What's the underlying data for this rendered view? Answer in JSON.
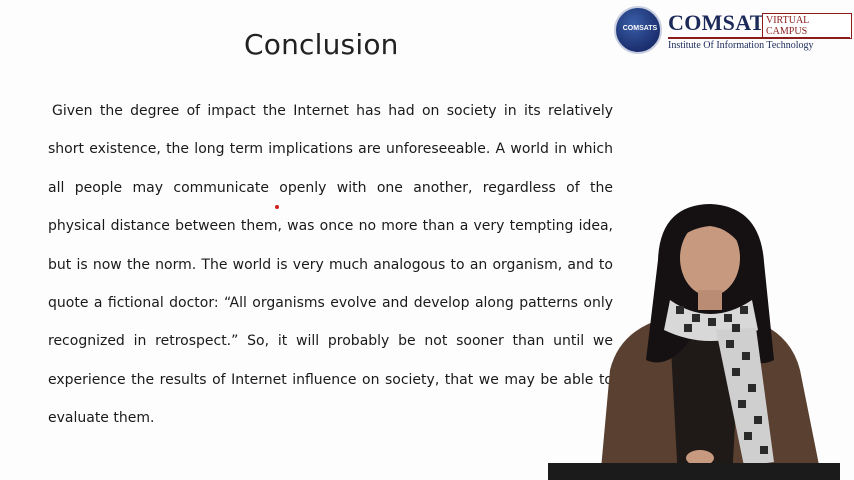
{
  "slide": {
    "title": "Conclusion",
    "paragraph": "Given the degree of impact the Internet has had on society in its relatively short existence, the long term implications are unforeseeable. A world in which all people may communicate openly with one another, regardless of the physical distance between them, was once no more than a very tempting idea, but is now the norm. The world is very much analogous to an organism, and to quote a fictional doctor: “All organisms evolve and develop along patterns only recognized in retrospect.” So, it will probably be not sooner than until we experience the results of Internet influence on society, that we may be able to evaluate them."
  },
  "logo": {
    "badge_text": "COMSATS",
    "name": "COMSATS",
    "tag": "VIRTUAL CAMPUS",
    "subtitle": "Institute Of Information Technology"
  },
  "colors": {
    "logo_navy": "#1c2a5a",
    "logo_red": "#8a1c1c",
    "scarf_dark": "#2a2a2a",
    "jacket": "#5a4030"
  },
  "icons": [
    "comsats-logo-icon",
    "presenter-image",
    "laser-pointer-icon"
  ]
}
